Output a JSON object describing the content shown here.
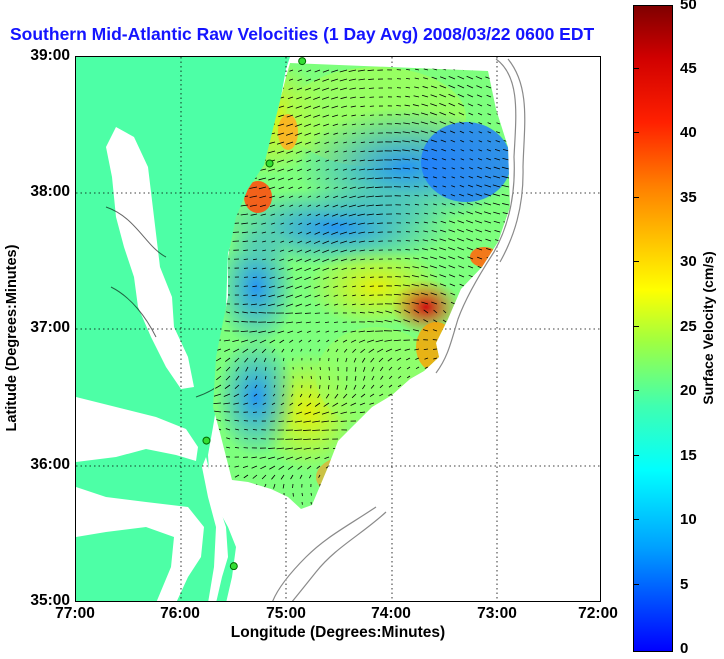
{
  "title": "Southern Mid-Atlantic Raw Velocities (1 Day Avg) 2008/03/22 0600 EDT",
  "map": {
    "y_ticks": [
      "39:00",
      "38:00",
      "37:00",
      "36:00",
      "35:00"
    ],
    "x_ticks": [
      "77:00",
      "76:00",
      "75:00",
      "74:00",
      "73:00",
      "72:00"
    ],
    "xlabel": "Longitude (Degrees:Minutes)",
    "ylabel": "Latitude (Degrees:Minutes)",
    "lon_range": [
      -77,
      -72
    ],
    "lat_range": [
      35,
      39
    ],
    "land_color": "#4dffa6",
    "water_color": "#ffffff",
    "arrow_color": "#000000",
    "station_color": "#33dd33",
    "stations_lonlat": [
      [
        -74.85,
        38.97
      ],
      [
        -75.16,
        38.22
      ],
      [
        -75.76,
        36.19
      ],
      [
        -75.5,
        35.27
      ]
    ]
  },
  "colorbar": {
    "label": "Surface Velocity (cm/s)",
    "ticks": [
      "50",
      "45",
      "40",
      "35",
      "30",
      "25",
      "20",
      "15",
      "10",
      "5",
      "0"
    ],
    "range": [
      0,
      50
    ]
  }
}
